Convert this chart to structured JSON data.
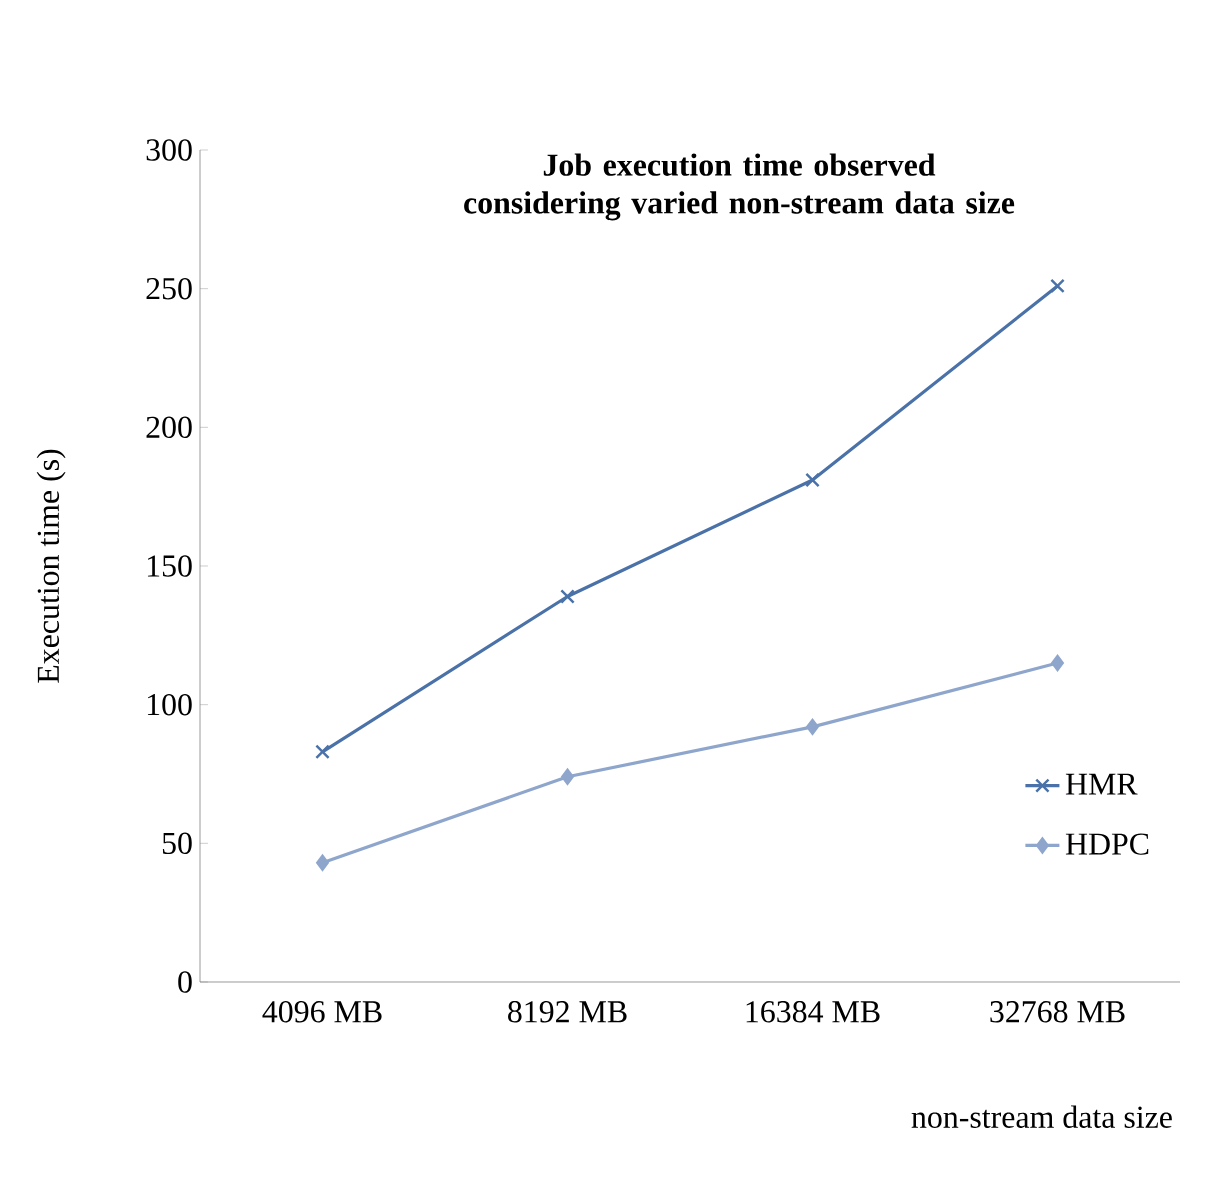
{
  "chart_data": {
    "type": "line",
    "title": "Job execution time observed considering varied non-stream data size",
    "xlabel": "non-stream data size",
    "ylabel": "Execution time (s)",
    "categories": [
      "4096 MB",
      "8192 MB",
      "16384 MB",
      "32768 MB"
    ],
    "series": [
      {
        "name": "HMR",
        "color": "#4a72a8",
        "marker": "cross",
        "values": [
          83,
          139,
          181,
          251
        ]
      },
      {
        "name": "HDPC",
        "color": "#8fa6cc",
        "marker": "diamond",
        "values": [
          43,
          74,
          92,
          115
        ]
      }
    ],
    "ylim": [
      0,
      300
    ],
    "yticks": [
      0,
      50,
      100,
      150,
      200,
      250,
      300
    ],
    "grid": false,
    "legend": "bottom right",
    "line_style": "solid"
  }
}
